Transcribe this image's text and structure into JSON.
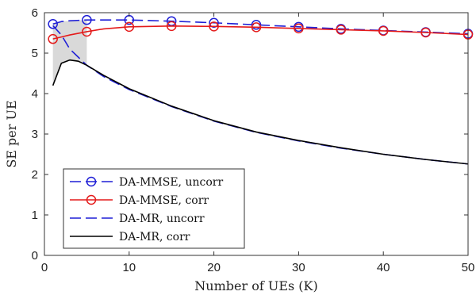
{
  "chart_data": {
    "type": "line",
    "xlabel": "Number of UEs (K)",
    "ylabel": "SE per UE",
    "xlim": [
      0,
      50
    ],
    "ylim": [
      0,
      6
    ],
    "xticks": [
      0,
      10,
      20,
      30,
      40,
      50
    ],
    "yticks": [
      0,
      1,
      2,
      3,
      4,
      5,
      6
    ],
    "grid": false,
    "legend_position": "bottom-left",
    "shaded_band": {
      "between": [
        "DA-MMSE, uncorr",
        "DA-MR, corr"
      ],
      "x_range": [
        1,
        5
      ],
      "color": "#d9d9d9"
    },
    "series": [
      {
        "name": "DA-MMSE, uncorr",
        "color": "#1f1fd6",
        "line_style": "dashed",
        "marker": "circle",
        "x": [
          1,
          2,
          3,
          5,
          10,
          15,
          20,
          25,
          30,
          35,
          40,
          45,
          50
        ],
        "y": [
          5.72,
          5.78,
          5.8,
          5.82,
          5.82,
          5.79,
          5.75,
          5.7,
          5.65,
          5.6,
          5.56,
          5.52,
          5.48
        ],
        "marker_x": [
          1,
          5,
          10,
          15,
          20,
          25,
          30,
          35,
          40,
          45,
          50
        ]
      },
      {
        "name": "DA-MMSE, corr",
        "color": "#e41a1a",
        "line_style": "solid",
        "marker": "circle",
        "x": [
          1,
          2,
          3,
          5,
          7,
          10,
          15,
          20,
          25,
          30,
          35,
          40,
          45,
          50
        ],
        "y": [
          5.35,
          5.4,
          5.45,
          5.53,
          5.6,
          5.65,
          5.67,
          5.66,
          5.64,
          5.61,
          5.58,
          5.55,
          5.51,
          5.46
        ],
        "marker_x": [
          1,
          5,
          10,
          15,
          20,
          25,
          30,
          35,
          40,
          45,
          50
        ]
      },
      {
        "name": "DA-MR, uncorr",
        "color": "#1f1fd6",
        "line_style": "dashed",
        "marker": "none",
        "x": [
          1,
          2,
          3,
          5,
          7,
          10,
          15,
          20,
          25,
          30,
          35,
          40,
          45,
          50
        ],
        "y": [
          5.68,
          5.45,
          5.1,
          4.7,
          4.42,
          4.1,
          3.68,
          3.32,
          3.04,
          2.83,
          2.65,
          2.5,
          2.37,
          2.26
        ]
      },
      {
        "name": "DA-MR, corr",
        "color": "#000000",
        "line_style": "solid",
        "marker": "none",
        "x": [
          1,
          2,
          3,
          4,
          5,
          7,
          10,
          15,
          20,
          25,
          30,
          35,
          40,
          45,
          50
        ],
        "y": [
          4.2,
          4.75,
          4.83,
          4.8,
          4.7,
          4.45,
          4.12,
          3.69,
          3.33,
          3.05,
          2.84,
          2.66,
          2.5,
          2.37,
          2.26
        ]
      }
    ]
  }
}
